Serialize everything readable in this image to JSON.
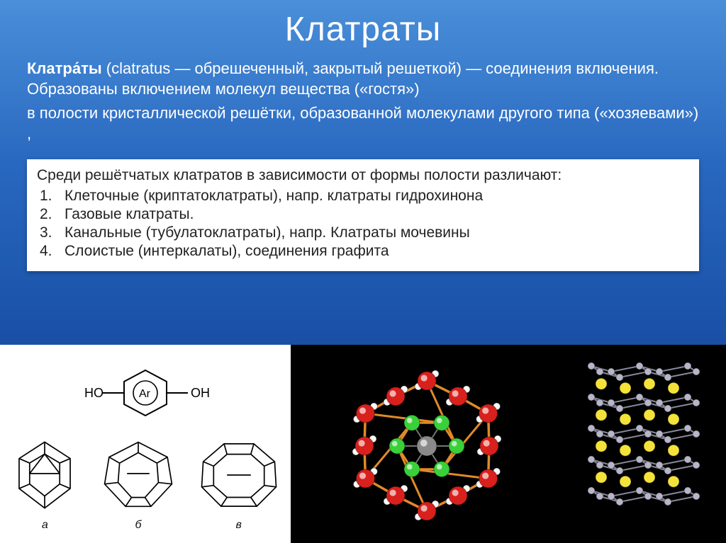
{
  "title": "Клатраты",
  "paragraph1": {
    "bold": "Клатра́ты",
    "rest": " (clatratus — обрешеченный, закрытый решеткой) — соединения включения. Образованы включением молекул вещества («гостя»)"
  },
  "paragraph2": " в полости кристаллической решётки, образованной молекулами другого типа («хозяевами») ,",
  "box": {
    "intro": "Среди решётчатых клатратов в зависимости от формы полости различают:",
    "items": [
      "Клеточные (криптатоклатраты), напр. клатраты  гидрохинона",
      "Газовые клатраты.",
      "Канальные (тубулатоклатраты), напр. Клатраты мочевины",
      "Слоистые (интеркалаты), соединения графита"
    ]
  },
  "chem_labels": {
    "left": "HO",
    "center": "Ar",
    "right": "OH"
  },
  "poly_labels": [
    "а",
    "б",
    "в"
  ],
  "colors": {
    "bg_top": "#4a8fd9",
    "bg_mid": "#1a52a8",
    "box_bg": "#ffffff",
    "box_text": "#222222",
    "atom_red": "#d8201c",
    "atom_green": "#39d039",
    "atom_gray": "#8a8a8a",
    "atom_white": "#f8f8f8",
    "bond_orange": "#e08a2a",
    "graphite_node": "#b6b6c8",
    "graphite_bond": "#888899",
    "intercalant": "#f4e23a"
  },
  "graphite": {
    "layers": 5,
    "cols": 5,
    "layer_spacing": 44,
    "intercalant_rows": 4
  }
}
